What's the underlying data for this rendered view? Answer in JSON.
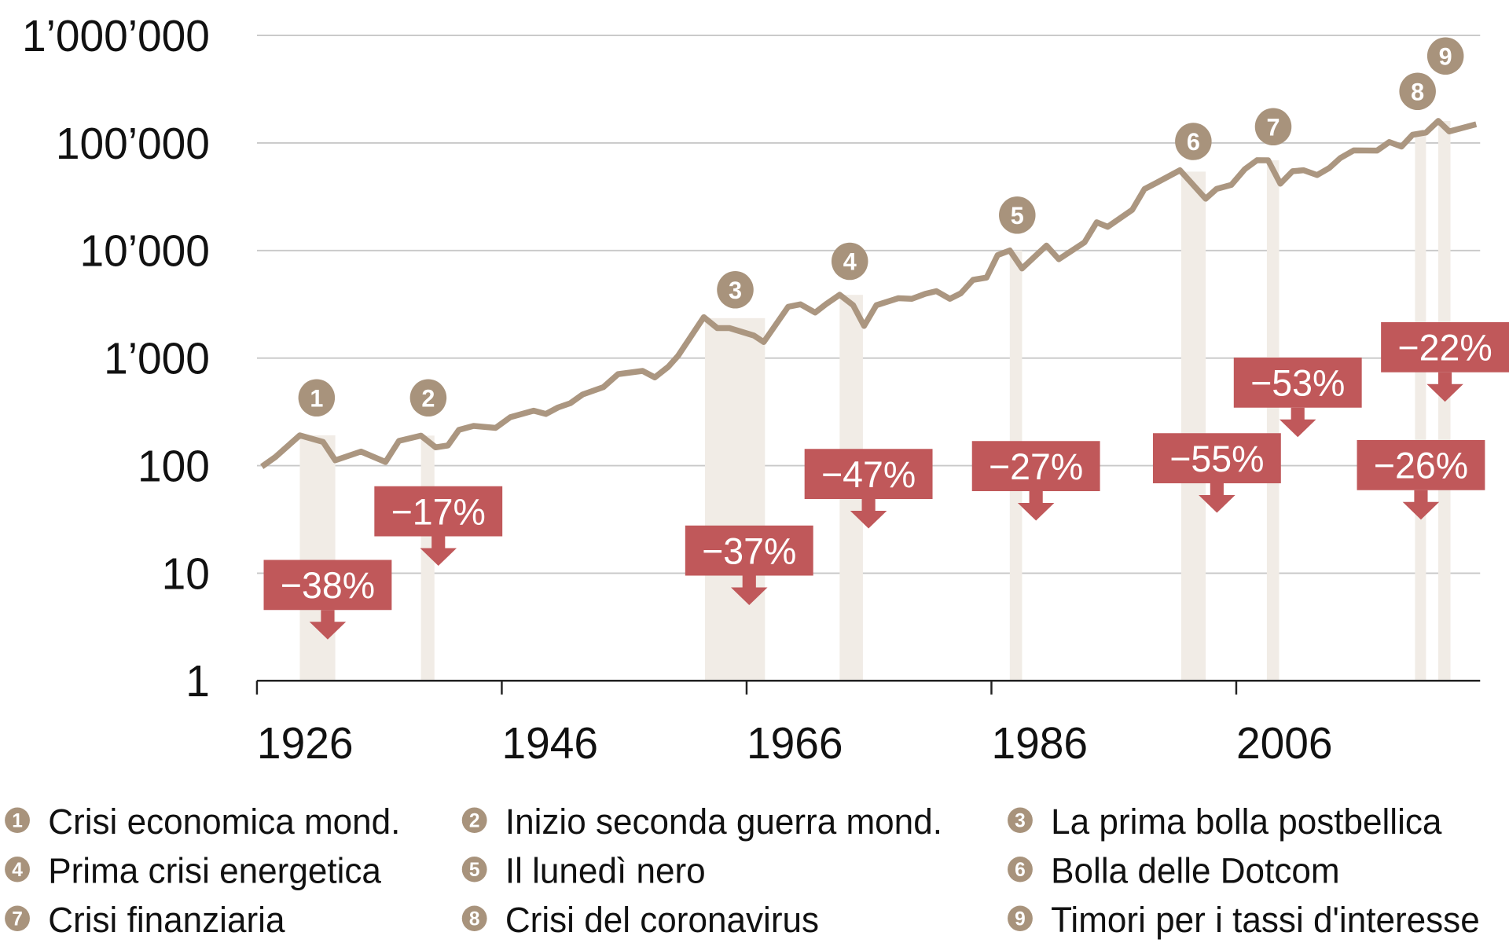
{
  "chart_data": {
    "type": "line",
    "title": "",
    "xlabel": "",
    "ylabel": "",
    "y_scale": "log",
    "ylim": [
      1,
      1000000
    ],
    "xlim": [
      1926,
      2026
    ],
    "grid": true,
    "y_ticks": [
      1,
      10,
      100,
      1000,
      10000,
      100000,
      1000000
    ],
    "y_tick_labels": [
      "1",
      "10",
      "100",
      "1’000",
      "10’000",
      "100’000",
      "1’000’000"
    ],
    "x_ticks": [
      1926,
      1946,
      1966,
      1986,
      2006
    ],
    "x_tick_labels": [
      "1926",
      "1946",
      "1966",
      "1986",
      "2006"
    ],
    "colors": {
      "line": "#ab9680",
      "band": "#f1ece6",
      "marker": "#a8937c",
      "drop": "#c0585a",
      "grid": "#c8c8c8"
    },
    "series": [
      {
        "x": [
          1926.4,
          1927.5,
          1929.5,
          1931.4,
          1932.4,
          1934.5,
          1936.5,
          1937.6,
          1939.4,
          1940.6,
          1941.6,
          1942.5,
          1943.7,
          1945.5,
          1946.7,
          1948.6,
          1949.6,
          1950.6,
          1951.6,
          1952.6,
          1954.3,
          1955.5,
          1957.5,
          1958.5,
          1959.6,
          1960.4,
          1962.5,
          1963.6,
          1964.6,
          1966.6,
          1967.4,
          1969.4,
          1970.4,
          1971.6,
          1972.5,
          1973.6,
          1974.7,
          1975.6,
          1976.6,
          1978.4,
          1979.5,
          1980.6,
          1981.5,
          1982.6,
          1983.5,
          1984.5,
          1985.6,
          1986.5,
          1987.5,
          1988.5,
          1990.5,
          1991.5,
          1993.6,
          1994.6,
          1995.5,
          1997.5,
          1998.5,
          1999.5,
          2001.4,
          2003.5,
          2004.4,
          2005.6,
          2006.7,
          2007.7,
          2008.6,
          2009.6,
          2010.6,
          2011.5,
          2012.6,
          2013.6,
          2014.5,
          2015.6,
          2017.5,
          2018.5,
          2019.5,
          2020.4,
          2021.5,
          2022.5,
          2023.4,
          2025.6
        ],
        "y": [
          98,
          120,
          191,
          166,
          112,
          135,
          108,
          170,
          190,
          148,
          154,
          215,
          234,
          224,
          282,
          324,
          302,
          347,
          380,
          458,
          537,
          708,
          760,
          661,
          830,
          1050,
          2400,
          1900,
          1900,
          1620,
          1410,
          3000,
          3160,
          2650,
          3180,
          3870,
          3100,
          1990,
          3100,
          3600,
          3550,
          3960,
          4190,
          3550,
          4000,
          5330,
          5600,
          9060,
          10000,
          6800,
          11100,
          8300,
          11900,
          18300,
          16600,
          23900,
          37200,
          42700,
          55700,
          30300,
          37400,
          40700,
          57000,
          69000,
          68900,
          41800,
          54600,
          55700,
          50300,
          58500,
          72300,
          85300,
          84800,
          102000,
          92600,
          119000,
          125000,
          160000,
          128000,
          149000
        ]
      }
    ],
    "events": [
      {
        "number": "1",
        "label": "Crisi economica mond.",
        "drawdown": "−38%",
        "period": [
          1929.5,
          1932.4
        ]
      },
      {
        "number": "2",
        "label": "Inizio seconda guerra mond.",
        "drawdown": "−17%",
        "period": [
          1939.4,
          1940.5
        ]
      },
      {
        "number": "3",
        "label": "La prima bolla postbellica",
        "drawdown": "−37%",
        "period": [
          1962.6,
          1967.5
        ]
      },
      {
        "number": "4",
        "label": "Prima crisi energetica",
        "drawdown": "−47%",
        "period": [
          1973.6,
          1975.5
        ]
      },
      {
        "number": "5",
        "label": "Il lunedì nero",
        "drawdown": "−27%",
        "period": [
          1987.5,
          1988.5
        ]
      },
      {
        "number": "6",
        "label": "Bolla delle Dotcom",
        "drawdown": "−55%",
        "period": [
          2001.5,
          2003.5
        ]
      },
      {
        "number": "7",
        "label": "Crisi finanziaria",
        "drawdown": "−53%",
        "period": [
          2008.5,
          2009.5
        ]
      },
      {
        "number": "8",
        "label": "Crisi del coronavirus",
        "drawdown": "−26%",
        "period": [
          2020.6,
          2021.5
        ]
      },
      {
        "number": "9",
        "label": "Timori per i tassi d'interesse",
        "drawdown": "−22%",
        "period": [
          2022.5,
          2023.5
        ]
      }
    ]
  }
}
